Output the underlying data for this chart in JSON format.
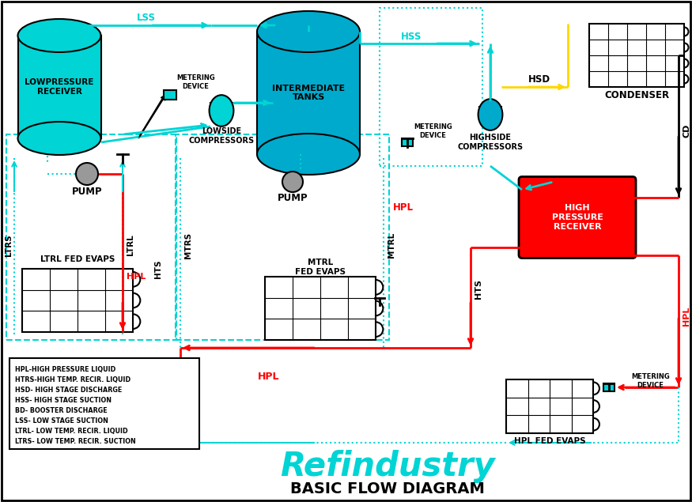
{
  "title": "BASIC FLOW DIAGRAM",
  "subtitle": "Refindustry",
  "bg_color": "#ffffff",
  "legend_items": [
    "HPL-HIGH PRESSURE LIQUID",
    "HTRS-HIGH TEMP. RECIR. LIQUID",
    "HSD- HIGH STAGE DISCHARGE",
    "HSS- HIGH STAGE SUCTION",
    "BD- BOOSTER DISCHARGE",
    "LSS- LOW STAGE SUCTION",
    "LTRL- LOW TEMP. RECIR. LIQUID",
    "LTRS- LOW TEMP. RECIR. SUCTION"
  ],
  "cyan": "#00d4d4",
  "red": "#ff0000",
  "black": "#000000",
  "yellow": "#ffd700",
  "gray": "#999999",
  "blue": "#00aacc",
  "dark_gray": "#555555"
}
